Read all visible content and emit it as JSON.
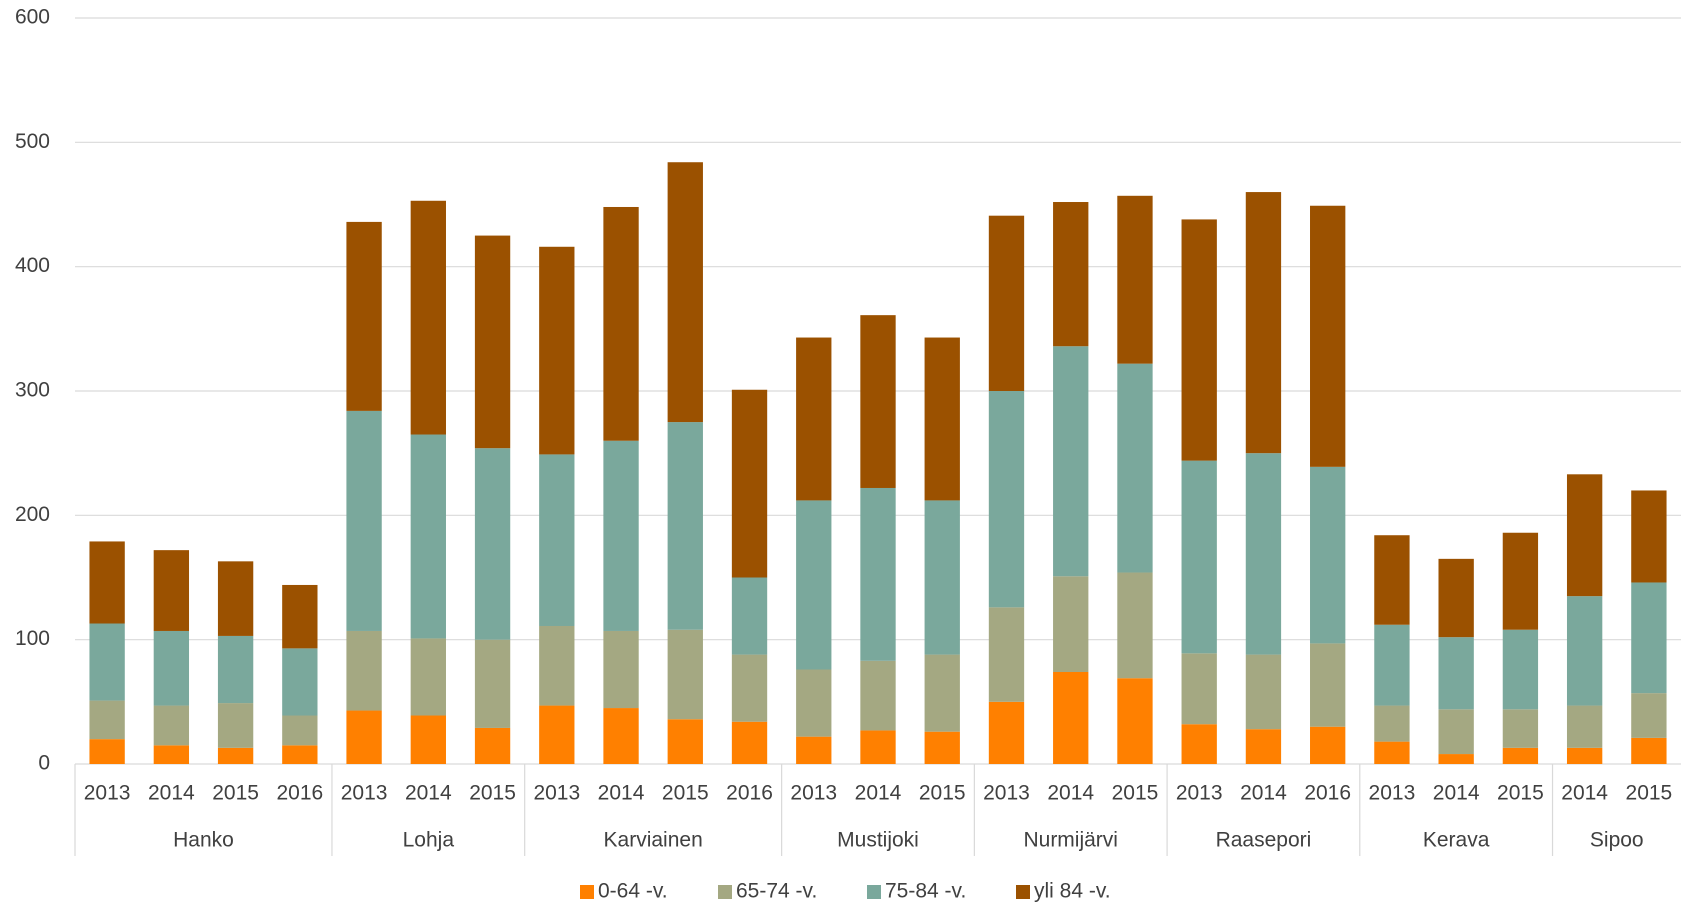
{
  "chart_data": {
    "type": "stacked_bar",
    "groups": [
      {
        "name": "Hanko",
        "categories": [
          "2013",
          "2014",
          "2015",
          "2016"
        ]
      },
      {
        "name": "Lohja",
        "categories": [
          "2013",
          "2014",
          "2015"
        ]
      },
      {
        "name": "Karviainen",
        "categories": [
          "2013",
          "2014",
          "2015",
          "2016"
        ]
      },
      {
        "name": "Mustijoki",
        "categories": [
          "2013",
          "2014",
          "2015"
        ]
      },
      {
        "name": "Nurmijärvi",
        "categories": [
          "2013",
          "2014",
          "2015"
        ]
      },
      {
        "name": "Raasepori",
        "categories": [
          "2013",
          "2014",
          "2016"
        ]
      },
      {
        "name": "Kerava",
        "categories": [
          "2013",
          "2014",
          "2015"
        ]
      },
      {
        "name": "Sipoo",
        "categories": [
          "2014",
          "2015"
        ]
      }
    ],
    "series": [
      {
        "name": "0-64 -v.",
        "color": "#ff8000",
        "values": [
          20,
          15,
          13,
          15,
          43,
          39,
          29,
          47,
          45,
          36,
          34,
          22,
          27,
          26,
          50,
          74,
          69,
          32,
          28,
          30,
          18,
          8,
          13,
          13,
          21
        ]
      },
      {
        "name": "65-74 -v.",
        "color": "#a4a882",
        "values": [
          31,
          32,
          36,
          24,
          64,
          62,
          71,
          64,
          62,
          72,
          54,
          54,
          56,
          62,
          76,
          77,
          85,
          57,
          60,
          67,
          29,
          36,
          31,
          34,
          36
        ]
      },
      {
        "name": "75-84 -v.",
        "color": "#7aa89c",
        "values": [
          62,
          60,
          54,
          54,
          177,
          164,
          154,
          138,
          153,
          167,
          62,
          136,
          139,
          124,
          174,
          185,
          168,
          155,
          162,
          142,
          65,
          58,
          64,
          88,
          89
        ]
      },
      {
        "name": "yli 84 -v.",
        "color": "#9b5100",
        "values": [
          66,
          65,
          60,
          51,
          152,
          188,
          171,
          167,
          188,
          209,
          151,
          131,
          139,
          131,
          141,
          116,
          135,
          194,
          210,
          210,
          72,
          63,
          78,
          98,
          74
        ]
      }
    ],
    "ylim": [
      0,
      600
    ],
    "yticks": [
      0,
      100,
      200,
      300,
      400,
      500,
      600
    ],
    "grid": true,
    "legend": "bottom"
  }
}
